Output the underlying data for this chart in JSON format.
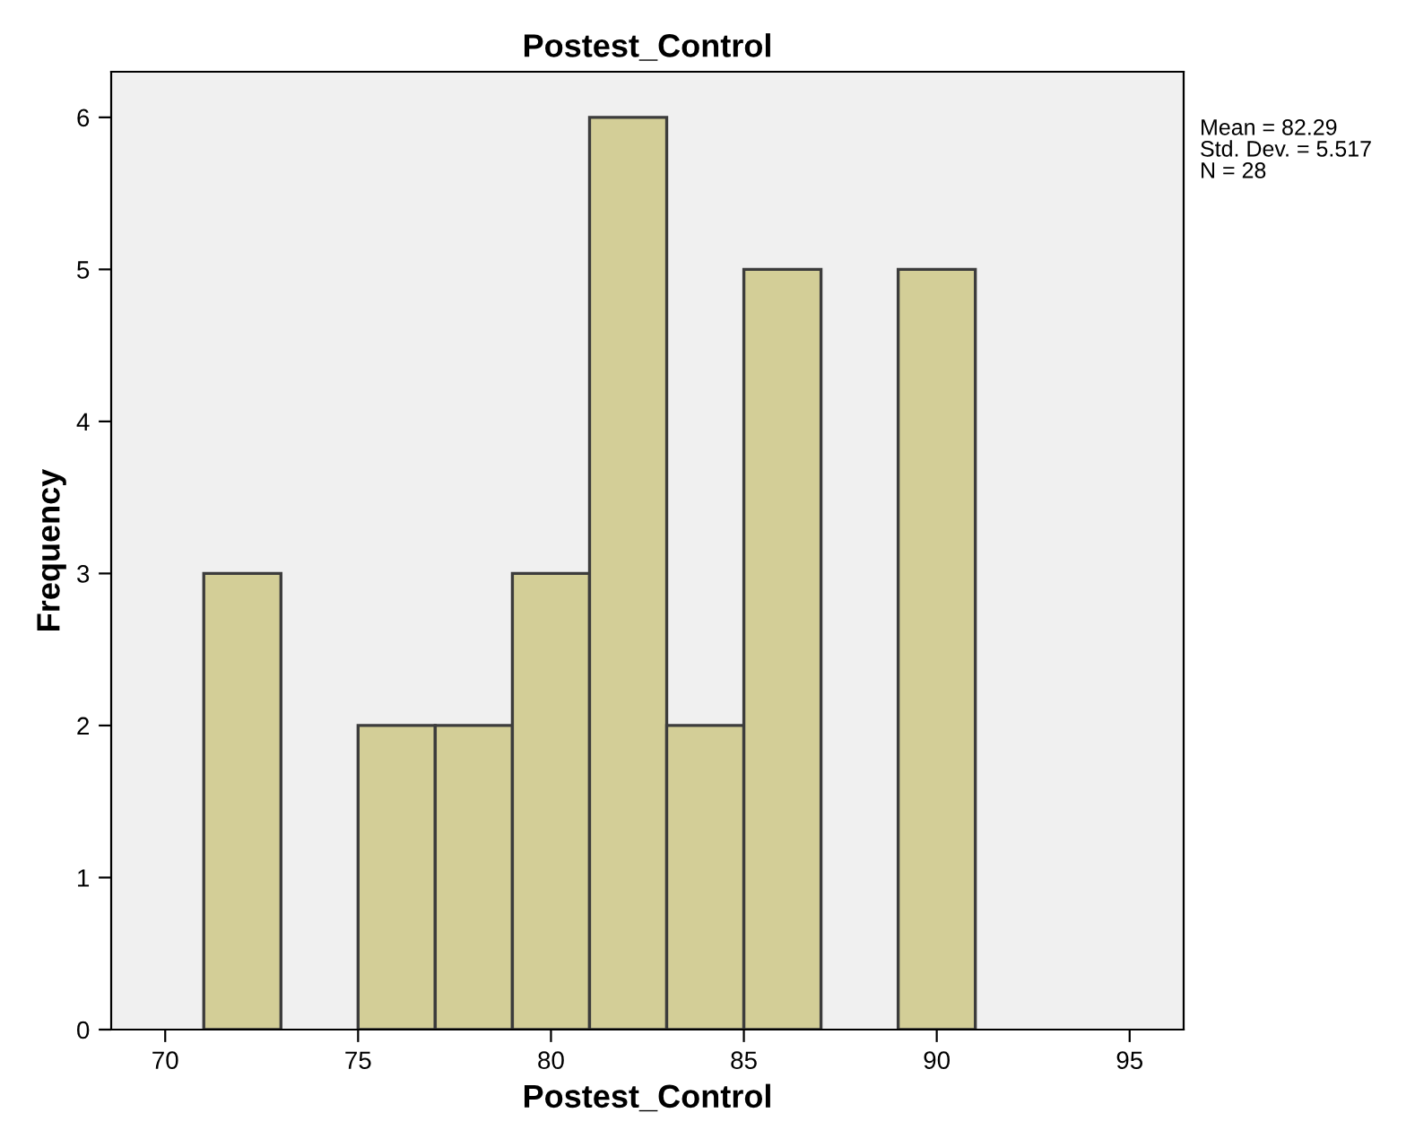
{
  "chart_data": {
    "type": "histogram",
    "title": "Postest_Control",
    "xlabel": "Postest_Control",
    "ylabel": "Frequency",
    "bins": [
      71,
      73,
      75,
      77,
      79,
      81,
      83,
      85,
      87,
      89,
      91
    ],
    "values": [
      3,
      0,
      2,
      2,
      3,
      6,
      2,
      5,
      0,
      5
    ],
    "color": "#d3ce97",
    "xlim": [
      68.6,
      96.4
    ],
    "xticks": [
      70,
      75,
      80,
      85,
      90,
      95
    ],
    "ylim": [
      0,
      6.3
    ],
    "yticks": [
      0,
      1,
      2,
      3,
      4,
      5,
      6
    ],
    "grid": false,
    "legend": false,
    "annotations": [
      "Mean = 82.29",
      "Std. Dev. = 5.517",
      "N = 28"
    ]
  }
}
